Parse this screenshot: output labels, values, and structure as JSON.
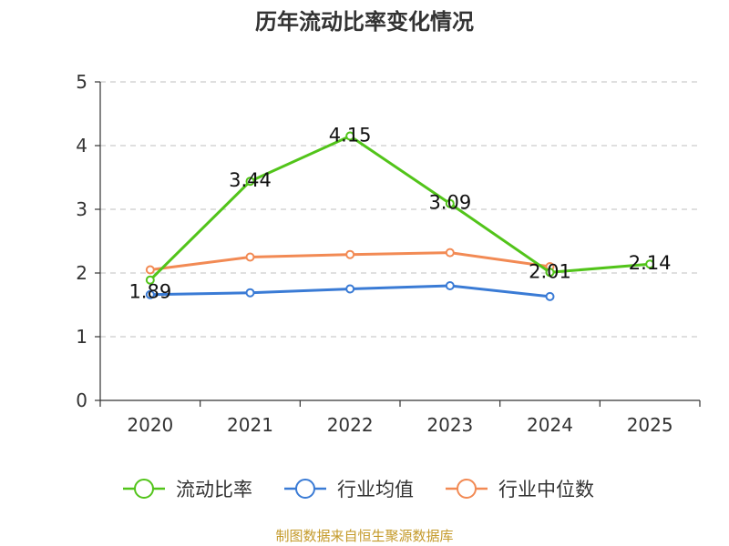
{
  "chart_data": {
    "type": "line",
    "title": "历年流动比率变化情况",
    "categories": [
      "2020",
      "2021",
      "2022",
      "2023",
      "2024",
      "2025"
    ],
    "ylim": [
      0,
      5
    ],
    "yticks": [
      0,
      1,
      2,
      3,
      4,
      5
    ],
    "grid": true,
    "legend_position": "bottom",
    "series": [
      {
        "name": "流动比率",
        "color": "#52c41a",
        "values": [
          1.89,
          3.44,
          4.15,
          3.09,
          2.01,
          2.14
        ],
        "labels": [
          "1.89",
          "3.44",
          "4.15",
          "3.09",
          "2.01",
          "2.14"
        ]
      },
      {
        "name": "行业均值",
        "color": "#3a7bd5",
        "values": [
          1.66,
          1.69,
          1.75,
          1.8,
          1.63,
          null
        ]
      },
      {
        "name": "行业中位数",
        "color": "#f28a54",
        "values": [
          2.05,
          2.25,
          2.29,
          2.32,
          2.1,
          null
        ]
      }
    ]
  },
  "source": "制图数据来自恒生聚源数据库"
}
